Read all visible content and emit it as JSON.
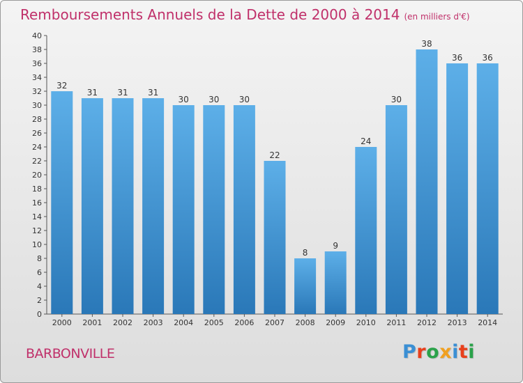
{
  "header": {
    "title": "Remboursements Annuels de la Dette de 2000 à 2014",
    "subtitle": "(en milliers d'€)"
  },
  "footer": {
    "commune": "BARBONVILLE",
    "logo_text": "Proxiti"
  },
  "colors": {
    "title": "#c0306a",
    "bar_light": "#5dafe8",
    "bar_dark": "#2a78b8",
    "logo": [
      "#3a8fd4",
      "#e8401c",
      "#2aa24a",
      "#f0a020",
      "#3a8fd4",
      "#e8401c",
      "#2aa24a"
    ]
  },
  "chart_data": {
    "type": "bar",
    "title": "Remboursements Annuels de la Dette de 2000 à 2014",
    "subtitle": "(en milliers d'€)",
    "categories": [
      "2000",
      "2001",
      "2002",
      "2003",
      "2004",
      "2005",
      "2006",
      "2007",
      "2008",
      "2009",
      "2010",
      "2011",
      "2012",
      "2013",
      "2014"
    ],
    "values": [
      32,
      31,
      31,
      31,
      30,
      30,
      30,
      22,
      8,
      9,
      24,
      30,
      38,
      36,
      36
    ],
    "ylim": [
      0,
      40
    ],
    "yticks": [
      0,
      2,
      4,
      6,
      8,
      10,
      12,
      14,
      16,
      18,
      20,
      22,
      24,
      26,
      28,
      30,
      32,
      34,
      36,
      38,
      40
    ],
    "grid": false,
    "legend": "none"
  }
}
